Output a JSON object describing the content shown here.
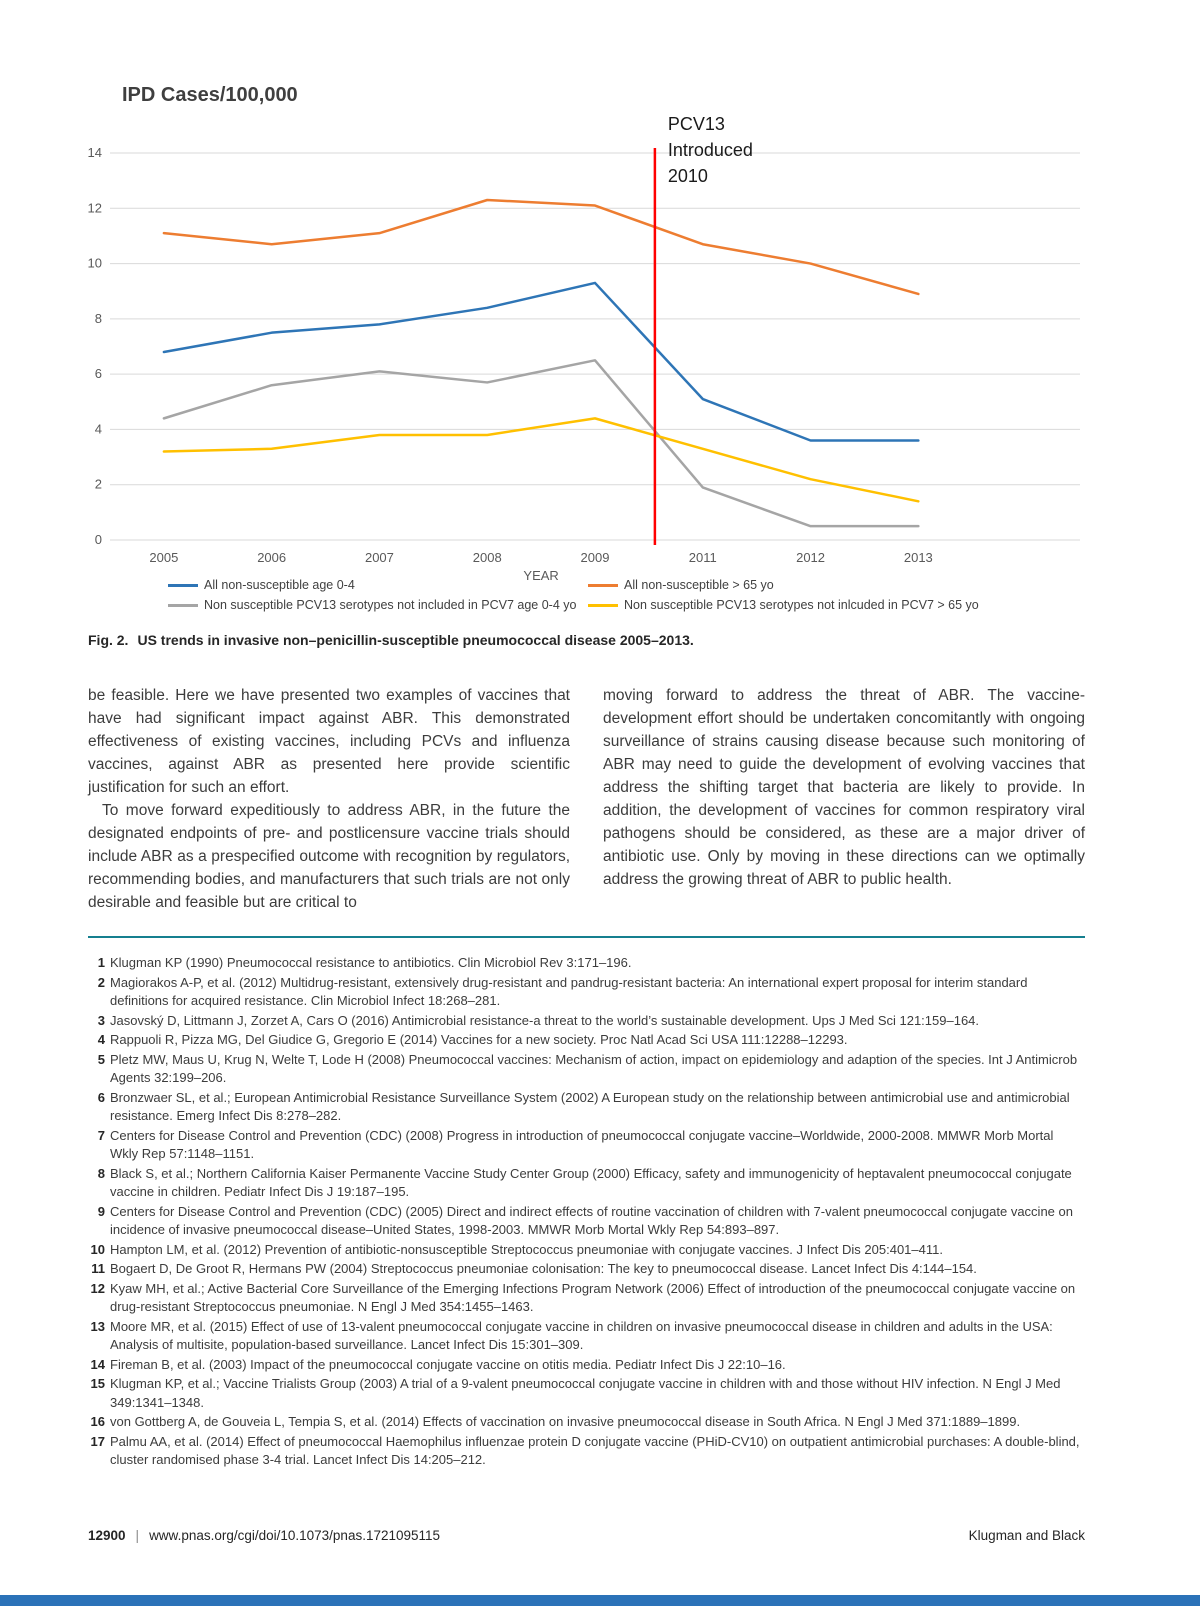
{
  "chart_data": {
    "type": "line",
    "title": "IPD Cases/100,000",
    "xlabel": "YEAR",
    "ylabel": "",
    "ylim": [
      0,
      14
    ],
    "ytick_step": 2,
    "grid": true,
    "legend_position": "bottom",
    "x_slots": 9,
    "categories": [
      "2005",
      "2006",
      "2007",
      "2008",
      "2009",
      "2011",
      "2012",
      "2013"
    ],
    "series": [
      {
        "name": "All non-susceptible age 0-4",
        "color": "#2e75b6",
        "values": [
          6.8,
          7.5,
          7.8,
          8.4,
          9.3,
          5.1,
          3.6,
          3.6
        ]
      },
      {
        "name": "All non-susceptible > 65 yo",
        "color": "#ed7d31",
        "values": [
          11.1,
          10.7,
          11.1,
          12.3,
          12.1,
          10.7,
          10.0,
          8.9
        ]
      },
      {
        "name": "Non susceptible PCV13 serotypes not included in PCV7 age 0-4 yo",
        "color": "#a5a5a5",
        "values": [
          4.4,
          5.6,
          6.1,
          5.7,
          6.5,
          1.9,
          0.5,
          0.5
        ]
      },
      {
        "name": "Non susceptible PCV13 serotypes not inlcuded in PCV7 > 65 yo",
        "color": "#ffc000",
        "values": [
          3.2,
          3.3,
          3.8,
          3.8,
          4.4,
          3.3,
          2.2,
          1.4
        ]
      }
    ],
    "annotation": {
      "lines": [
        "PCV13",
        "Introduced",
        "2010"
      ],
      "color": "#ff0000",
      "position": "vertical line at year 2010, between the 2009 and 2011 categories"
    },
    "colors": {
      "grid": "#d9d9d9",
      "tick_text": "#595959"
    }
  },
  "figure": {
    "caption_label": "Fig. 2.",
    "caption_text": "US trends in invasive non–penicillin-susceptible pneumococcal disease 2005–2013."
  },
  "article": {
    "left_column": {
      "para1": "be feasible. Here we have presented two examples of vaccines that have had significant impact against ABR. This demonstrated effectiveness of existing vaccines, including PCVs and influenza vaccines, against ABR as presented here provide scientific justification for such an effort.",
      "para2": "To move forward expeditiously to address ABR, in the future the designated endpoints of pre- and postlicensure vaccine trials should include ABR as a prespecified outcome with recognition by regulators, recommending bodies, and manufacturers that such trials are not only desirable and feasible but are critical to"
    },
    "right_column": {
      "para1": "moving forward to address the threat of ABR. The vaccine-development effort should be undertaken concomitantly with ongoing surveillance of strains causing disease because such monitoring of ABR may need to guide the development of evolving vaccines that address the shifting target that bacteria are likely to provide. In addition, the development of vaccines for common respiratory viral pathogens should be considered, as these are a major driver of antibiotic use. Only by moving in these directions can we optimally address the growing threat of ABR to public health."
    }
  },
  "references": {
    "items": [
      {
        "num": "1",
        "text": "Klugman KP (1990) Pneumococcal resistance to antibiotics. Clin Microbiol Rev 3:171–196."
      },
      {
        "num": "2",
        "text": "Magiorakos A-P, et al. (2012) Multidrug-resistant, extensively drug-resistant and pandrug-resistant bacteria: An international expert proposal for interim standard definitions for acquired resistance. Clin Microbiol Infect 18:268–281."
      },
      {
        "num": "3",
        "text": "Jasovský D, Littmann J, Zorzet A, Cars O (2016) Antimicrobial resistance-a threat to the world’s sustainable development. Ups J Med Sci 121:159–164."
      },
      {
        "num": "4",
        "text": "Rappuoli R, Pizza MG, Del Giudice G, Gregorio E (2014) Vaccines for a new society. Proc Natl Acad Sci USA 111:12288–12293."
      },
      {
        "num": "5",
        "text": "Pletz MW, Maus U, Krug N, Welte T, Lode H (2008) Pneumococcal vaccines: Mechanism of action, impact on epidemiology and adaption of the species. Int J Antimicrob Agents 32:199–206."
      },
      {
        "num": "6",
        "text": "Bronzwaer SL, et al.; European Antimicrobial Resistance Surveillance System (2002) A European study on the relationship between antimicrobial use and antimicrobial resistance. Emerg Infect Dis 8:278–282."
      },
      {
        "num": "7",
        "text": "Centers for Disease Control and Prevention (CDC) (2008) Progress in introduction of pneumococcal conjugate vaccine–Worldwide, 2000-2008. MMWR Morb Mortal Wkly Rep 57:1148–1151."
      },
      {
        "num": "8",
        "text": "Black S, et al.; Northern California Kaiser Permanente Vaccine Study Center Group (2000) Efficacy, safety and immunogenicity of heptavalent pneumococcal conjugate vaccine in children. Pediatr Infect Dis J 19:187–195."
      },
      {
        "num": "9",
        "text": "Centers for Disease Control and Prevention (CDC) (2005) Direct and indirect effects of routine vaccination of children with 7-valent pneumococcal conjugate vaccine on incidence of invasive pneumococcal disease–United States, 1998-2003. MMWR Morb Mortal Wkly Rep 54:893–897."
      },
      {
        "num": "10",
        "text": "Hampton LM, et al. (2012) Prevention of antibiotic-nonsusceptible Streptococcus pneumoniae with conjugate vaccines. J Infect Dis 205:401–411."
      },
      {
        "num": "11",
        "text": "Bogaert D, De Groot R, Hermans PW (2004) Streptococcus pneumoniae colonisation: The key to pneumococcal disease. Lancet Infect Dis 4:144–154."
      },
      {
        "num": "12",
        "text": "Kyaw MH, et al.; Active Bacterial Core Surveillance of the Emerging Infections Program Network (2006) Effect of introduction of the pneumococcal conjugate vaccine on drug-resistant Streptococcus pneumoniae. N Engl J Med 354:1455–1463."
      },
      {
        "num": "13",
        "text": "Moore MR, et al. (2015) Effect of use of 13-valent pneumococcal conjugate vaccine in children on invasive pneumococcal disease in children and adults in the USA: Analysis of multisite, population-based surveillance. Lancet Infect Dis 15:301–309."
      },
      {
        "num": "14",
        "text": "Fireman B, et al. (2003) Impact of the pneumococcal conjugate vaccine on otitis media. Pediatr Infect Dis J 22:10–16."
      },
      {
        "num": "15",
        "text": "Klugman KP, et al.; Vaccine Trialists Group (2003) A trial of a 9-valent pneumococcal conjugate vaccine in children with and those without HIV infection. N Engl J Med 349:1341–1348."
      },
      {
        "num": "16",
        "text": "von Gottberg A, de Gouveia L, Tempia S, et al. (2014) Effects of vaccination on invasive pneumococcal disease in South Africa. N Engl J Med 371:1889–1899."
      },
      {
        "num": "17",
        "text": "Palmu AA, et al. (2014) Effect of pneumococcal Haemophilus influenzae protein D conjugate vaccine (PHiD-CV10) on outpatient antimicrobial purchases: A double-blind, cluster randomised phase 3-4 trial. Lancet Infect Dis 14:205–212."
      }
    ]
  },
  "page": {
    "footer": {
      "page_number": "12900",
      "separator": "|",
      "doi": "www.pnas.org/cgi/doi/10.1073/pnas.1721095115",
      "authors": "Klugman and Black"
    },
    "colors": {
      "rule_teal": "#157f8f",
      "bottom_bar_blue": "#2b72b8"
    }
  }
}
